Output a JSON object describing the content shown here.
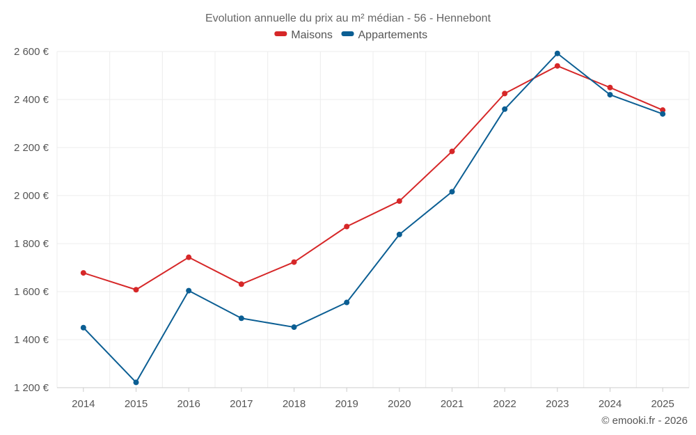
{
  "chart_data": {
    "type": "line",
    "title": "Evolution annuelle du prix au m² médian - 56 - Hennebont",
    "categories": [
      "2014",
      "2015",
      "2016",
      "2017",
      "2018",
      "2019",
      "2020",
      "2021",
      "2022",
      "2023",
      "2024",
      "2025"
    ],
    "series": [
      {
        "name": "Maisons",
        "color": "#d62728",
        "values": [
          1678,
          1608,
          1743,
          1631,
          1723,
          1871,
          1977,
          2184,
          2425,
          2540,
          2450,
          2356
        ]
      },
      {
        "name": "Appartements",
        "color": "#0b5e93",
        "values": [
          1450,
          1222,
          1604,
          1489,
          1452,
          1555,
          1838,
          2016,
          2360,
          2592,
          2420,
          2340
        ]
      }
    ],
    "ylim": [
      1200,
      2600
    ],
    "yticks": [
      1200,
      1400,
      1600,
      1800,
      2000,
      2200,
      2400,
      2600
    ],
    "ytick_labels": [
      "1 200 €",
      "1 400 €",
      "1 600 €",
      "1 800 €",
      "2 000 €",
      "2 200 €",
      "2 400 €",
      "2 600 €"
    ],
    "grid": true,
    "legend_position": "top-center",
    "xlabel": "",
    "ylabel": ""
  },
  "credit": "© emooki.fr - 2026"
}
